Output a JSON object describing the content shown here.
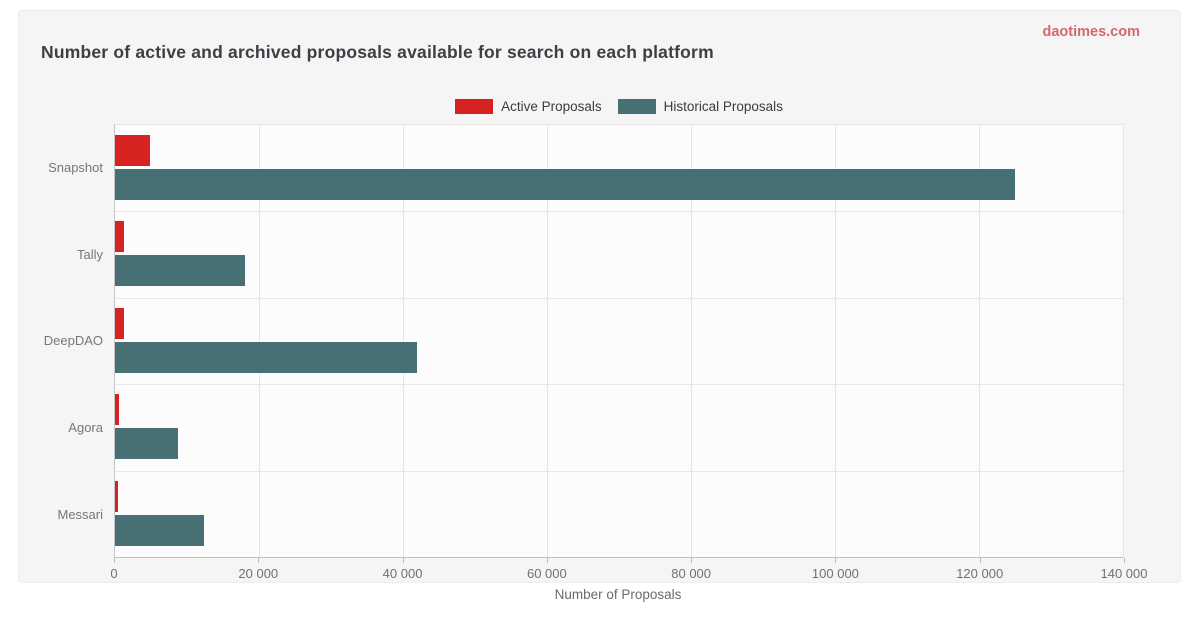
{
  "page": {
    "watermark": "daotimes.com"
  },
  "legend": {
    "items": [
      {
        "label": "Active Proposals",
        "color": "#d62322"
      },
      {
        "label": "Historical Proposals",
        "color": "#477074"
      }
    ]
  },
  "colors": {
    "active": "#d62322",
    "historical": "#477074",
    "watermark": "#d4696b"
  },
  "chart_data": {
    "type": "bar",
    "orientation": "horizontal",
    "title": "Number of active and archived proposals available for search on each platform",
    "xlabel": "Number of Proposals",
    "categories": [
      "Snapshot",
      "Tally",
      "DeepDAO",
      "Agora",
      "Messari"
    ],
    "series": [
      {
        "name": "Active Proposals",
        "color": "#d62322",
        "values": [
          4800,
          1200,
          1300,
          500,
          450
        ]
      },
      {
        "name": "Historical Proposals",
        "color": "#477074",
        "values": [
          125000,
          18000,
          42000,
          8700,
          12300
        ]
      }
    ],
    "xlim": [
      0,
      140000
    ],
    "xticks": [
      0,
      20000,
      40000,
      60000,
      80000,
      100000,
      120000,
      140000
    ],
    "xtick_labels": [
      "0",
      "20 000",
      "40 000",
      "60 000",
      "80 000",
      "100 000",
      "120 000",
      "140 000"
    ],
    "grid": true,
    "legend_position": "top-center"
  }
}
